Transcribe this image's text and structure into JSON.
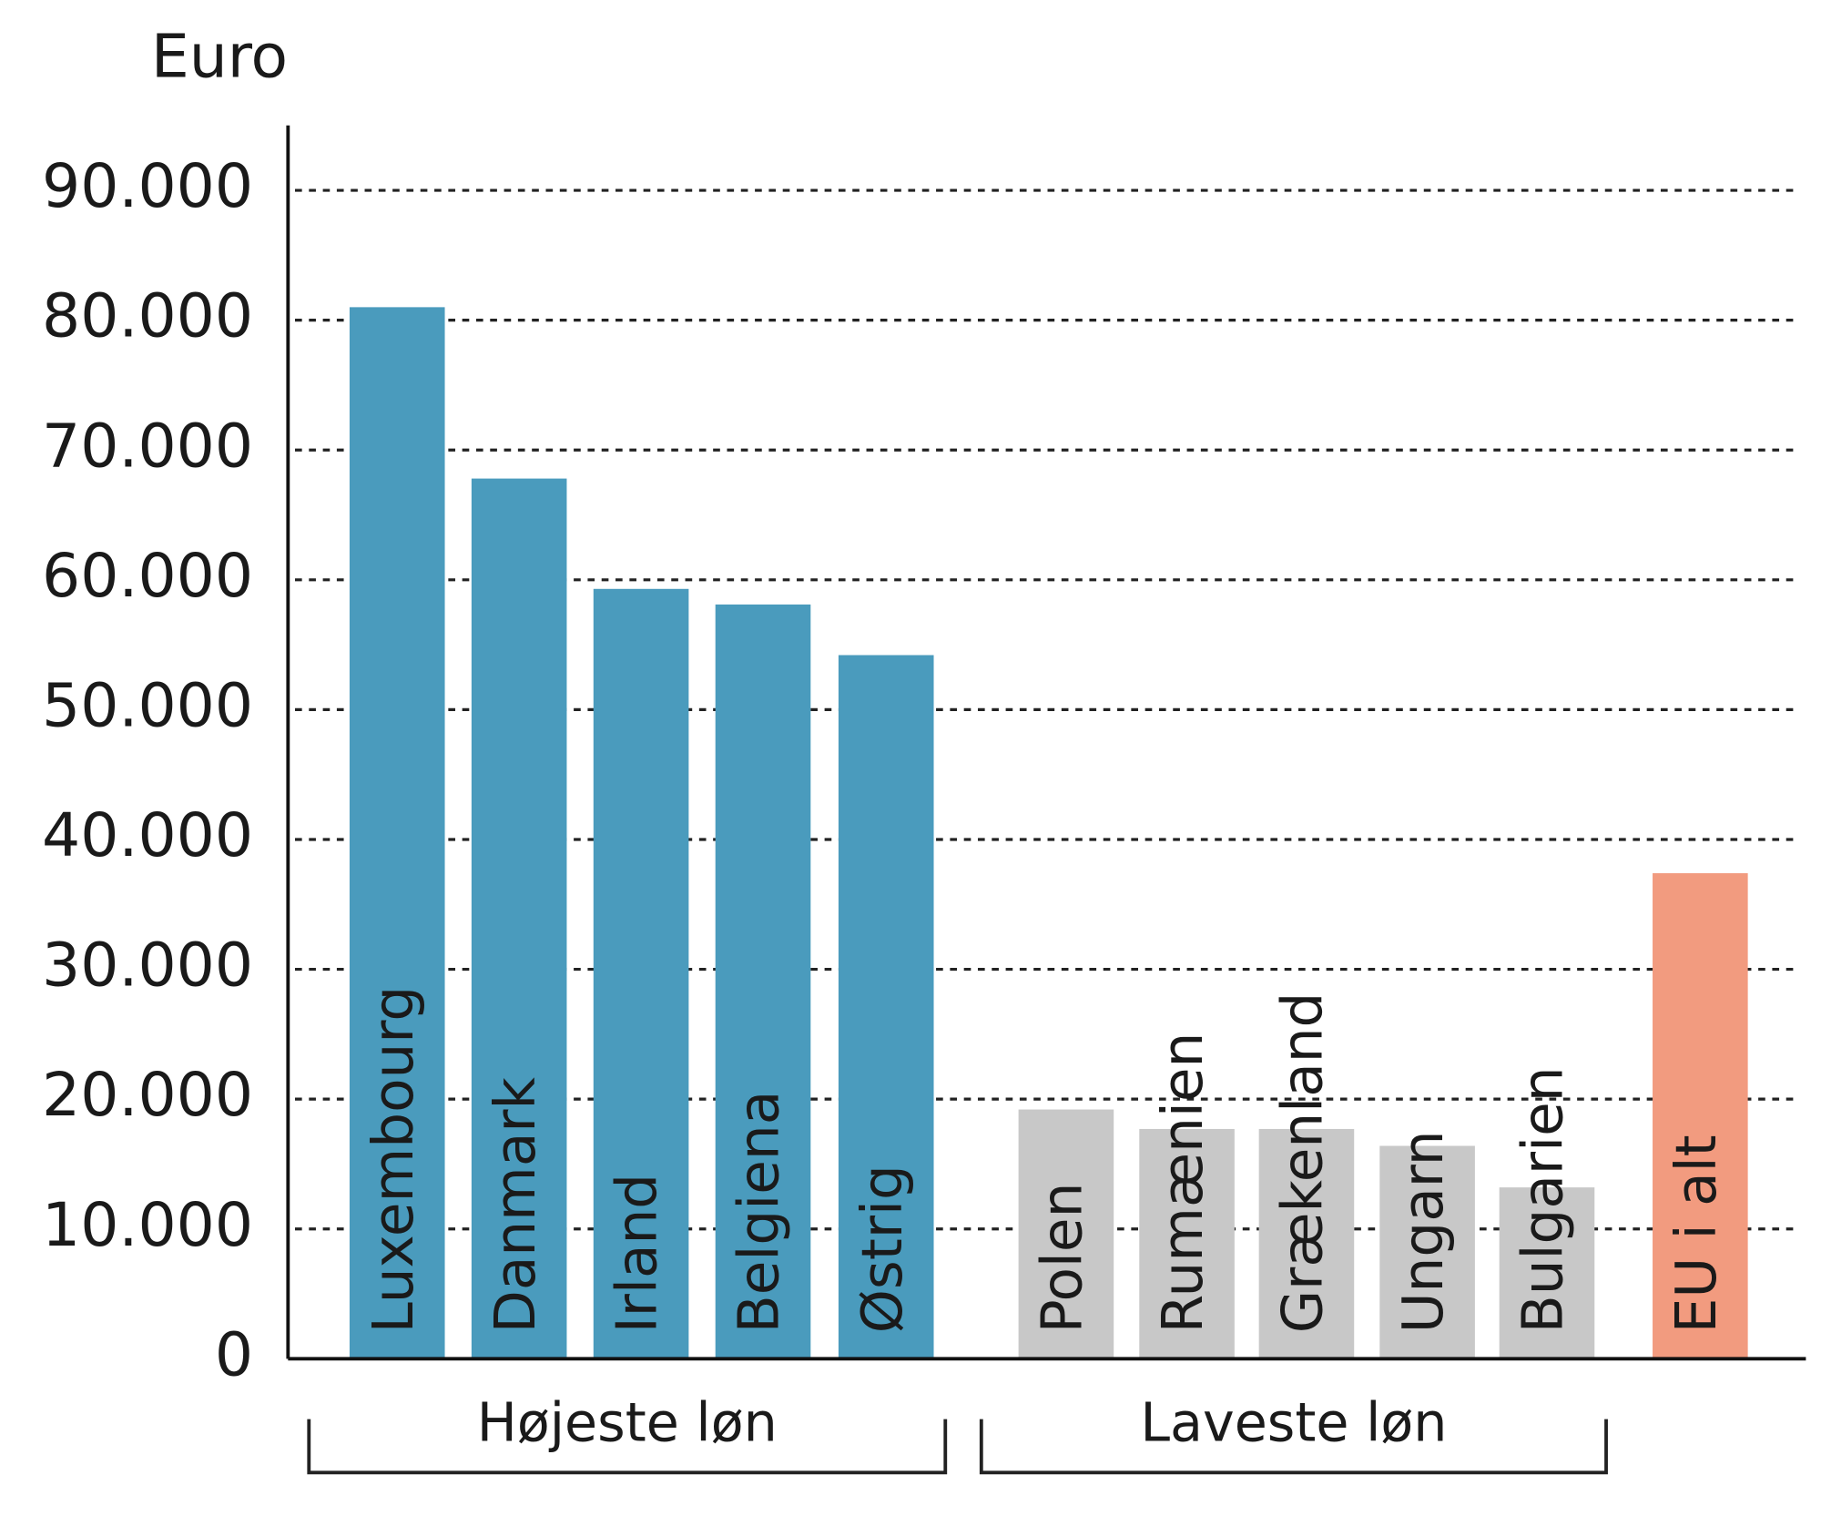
{
  "chart_data": {
    "type": "bar",
    "y_label": "Euro",
    "categories": [
      "Luxembourg",
      "Danmark",
      "Irland",
      "Belgiena",
      "Østrig",
      "Polen",
      "Rumænien",
      "Grækenland",
      "Ungarn",
      "Bulgarien",
      "EU i alt"
    ],
    "values": [
      81000,
      67800,
      59300,
      58100,
      54200,
      19200,
      17700,
      17700,
      16400,
      13200,
      37400
    ],
    "colors": [
      "#4a9bbd",
      "#4a9bbd",
      "#4a9bbd",
      "#4a9bbd",
      "#4a9bbd",
      "#c8c8c8",
      "#c8c8c8",
      "#c8c8c8",
      "#c8c8c8",
      "#c8c8c8",
      "#f29b7f"
    ],
    "groups": [
      "Højeste løn",
      "Laveste løn"
    ],
    "ylim": [
      0,
      95000
    ],
    "yticks": [
      0,
      {
        "value": 10000,
        "label": "10.000"
      },
      {
        "value": 20000,
        "label": "20.000"
      },
      {
        "value": 30000,
        "label": "30.000"
      },
      {
        "value": 40000,
        "label": "40.000"
      },
      {
        "value": 50000,
        "label": "50.000"
      },
      {
        "value": 60000,
        "label": "60.000"
      },
      {
        "value": 70000,
        "label": "70.000"
      },
      {
        "value": 80000,
        "label": "80.000"
      },
      {
        "value": 90000,
        "label": "90.000"
      }
    ],
    "grid": true
  }
}
